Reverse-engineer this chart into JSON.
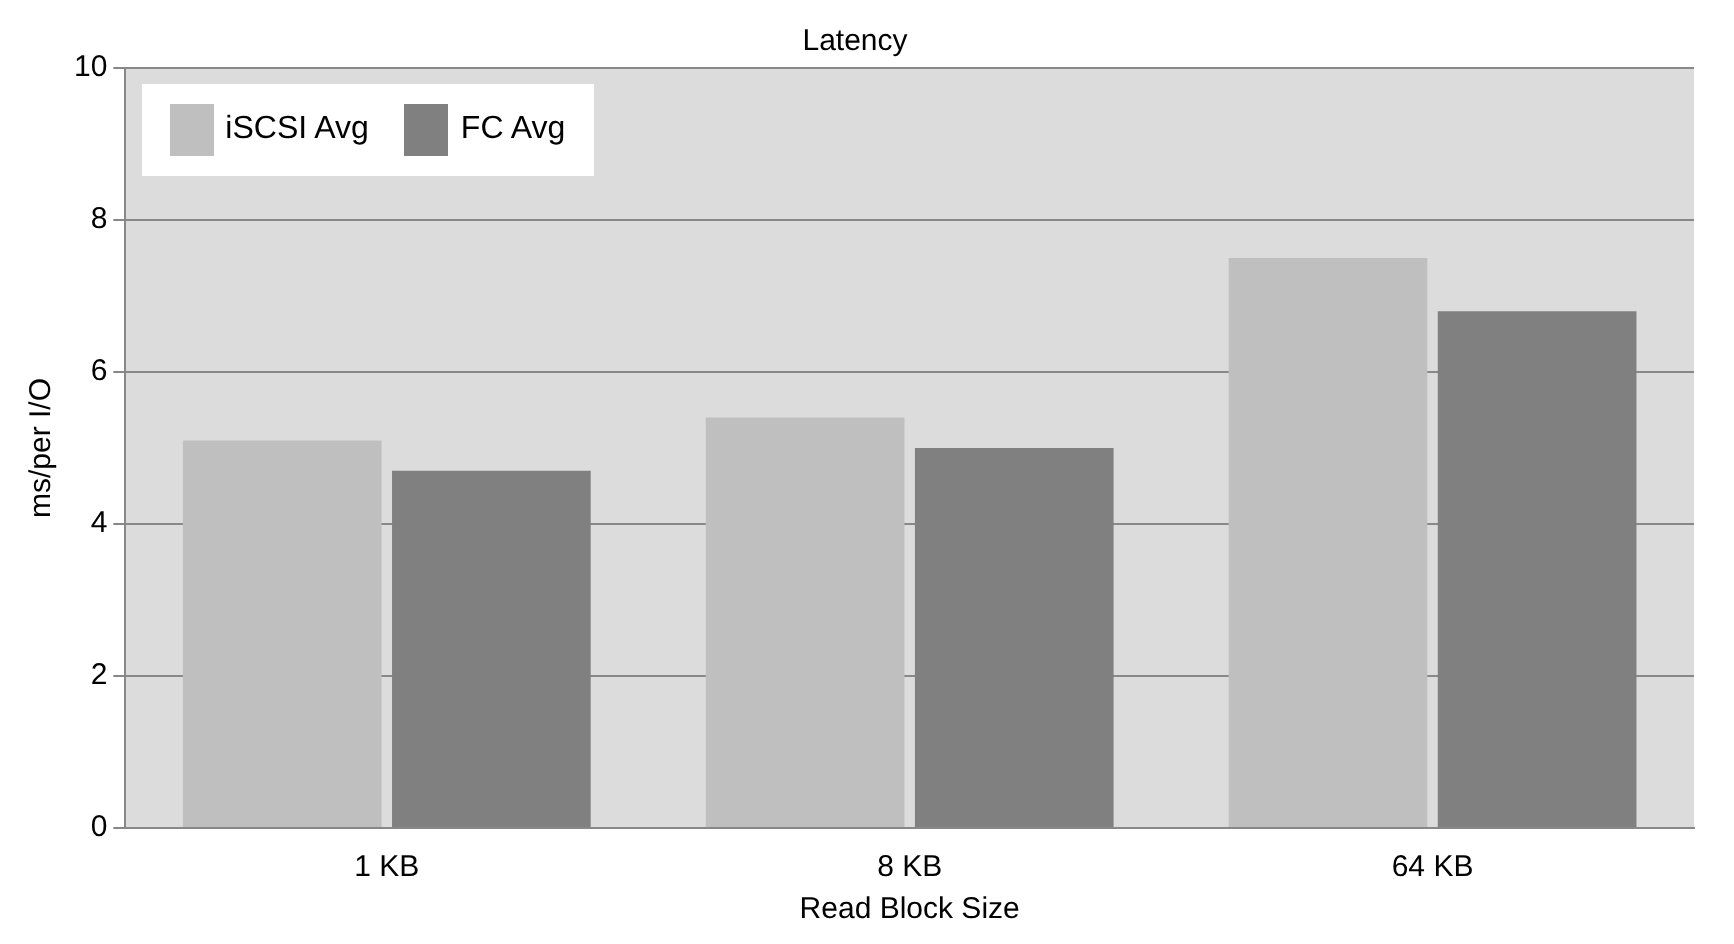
{
  "chart_data": {
    "type": "bar",
    "title": "Latency",
    "xlabel": "Read Block Size",
    "ylabel": "ms/per I/O",
    "categories": [
      "1 KB",
      "8 KB",
      "64 KB"
    ],
    "series": [
      {
        "name": "iSCSI Avg",
        "color": "#bfbfbf",
        "values": [
          5.1,
          5.4,
          7.5
        ]
      },
      {
        "name": "FC Avg",
        "color": "#808080",
        "values": [
          4.7,
          5.0,
          6.8
        ]
      }
    ],
    "ylim": [
      0,
      10
    ],
    "yticks": [
      0,
      2,
      4,
      6,
      8,
      10
    ],
    "grid": "y",
    "legend": "top left"
  }
}
